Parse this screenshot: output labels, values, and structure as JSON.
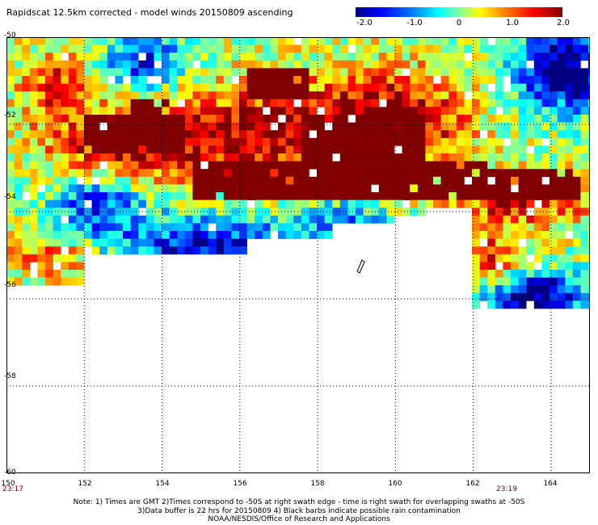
{
  "title": "Rapidscat 12.5km corrected - model winds 20150809 ascending",
  "colorbar": {
    "labels": [
      "-2.0",
      "-1.0",
      "0",
      "1.0",
      "2.0"
    ],
    "values": [
      -2.0,
      -1.0,
      0,
      1.0,
      2.0
    ],
    "min": -2.0,
    "max": 2.0,
    "colors": [
      "#000080",
      "#0000ff",
      "#0080ff",
      "#00ffff",
      "#80ffa0",
      "#ffff00",
      "#ff8000",
      "#ff0000",
      "#800000"
    ]
  },
  "map": {
    "lon_range": [
      150,
      165
    ],
    "lat_range": [
      -60,
      -50
    ],
    "lon_ticks": [
      "150",
      "152",
      "154",
      "156",
      "158",
      "160",
      "162",
      "164"
    ],
    "lat_ticks": [
      "-50",
      "-52",
      "-54",
      "-56",
      "-58",
      "-60"
    ],
    "swath_times": {
      "left": "23:17",
      "right": "23:19"
    },
    "grid": true
  },
  "notes": [
    "Note: 1) Times are GMT 2)Times correspond to -50S at right swath edge - time is right swath for overlapping swaths at -50S",
    "3)Data buffer is 22 hrs for 20150809 4) Black barbs indicate possible rain contamination",
    "NOAA/NESDIS/Office of Research and Applications"
  ]
}
